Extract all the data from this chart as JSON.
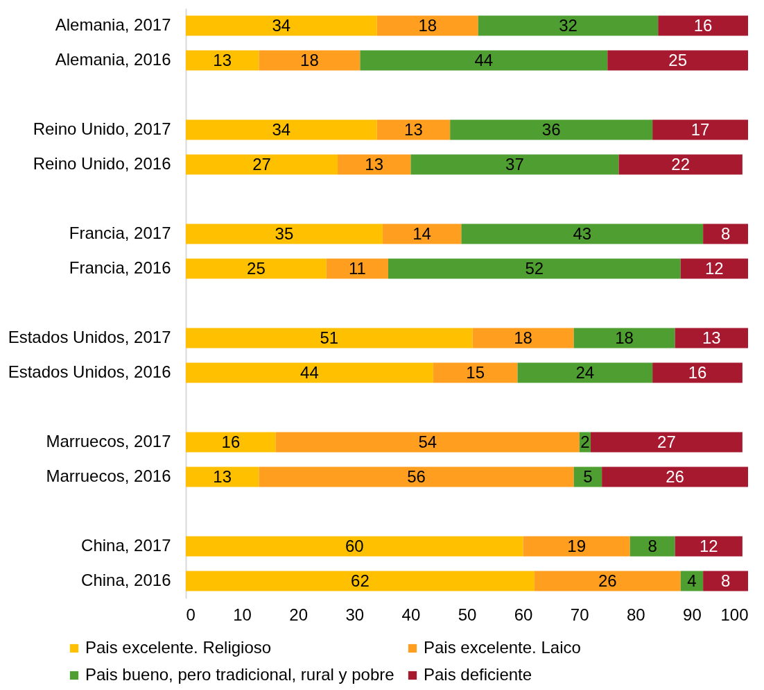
{
  "chart_data": {
    "type": "bar",
    "orientation": "horizontal",
    "stacked": true,
    "data_labels": true,
    "legend": "bottom",
    "categories": [
      "Alemania, 2017",
      "Alemania, 2016",
      null,
      "Reino Unido, 2017",
      "Reino Unido, 2016",
      null,
      "Francia, 2017",
      "Francia, 2016",
      null,
      "Estados Unidos, 2017",
      "Estados Unidos, 2016",
      null,
      "Marruecos, 2017",
      "Marruecos, 2016",
      null,
      "China, 2017",
      "China, 2016"
    ],
    "series": [
      {
        "name": "Pais excelente. Religioso",
        "color": "#ffc000",
        "values": [
          34,
          13,
          null,
          34,
          27,
          null,
          35,
          25,
          null,
          51,
          44,
          null,
          16,
          13,
          null,
          60,
          62
        ]
      },
      {
        "name": "Pais excelente. Laico",
        "color": "#ff9e1f",
        "values": [
          18,
          18,
          null,
          13,
          13,
          null,
          14,
          11,
          null,
          18,
          15,
          null,
          54,
          56,
          null,
          19,
          26
        ]
      },
      {
        "name": "Pais bueno, pero tradicional, rural y pobre",
        "color": "#4f9e31",
        "values": [
          32,
          44,
          null,
          36,
          37,
          null,
          43,
          52,
          null,
          18,
          24,
          null,
          2,
          5,
          null,
          8,
          4
        ]
      },
      {
        "name": "Pais deficiente",
        "color": "#a6192e",
        "values": [
          16,
          25,
          null,
          17,
          22,
          null,
          8,
          12,
          null,
          13,
          16,
          null,
          27,
          26,
          null,
          12,
          8
        ]
      }
    ],
    "xlim": [
      0,
      100
    ],
    "xticks": [
      0,
      10,
      20,
      30,
      40,
      50,
      60,
      70,
      80,
      90,
      100
    ]
  }
}
